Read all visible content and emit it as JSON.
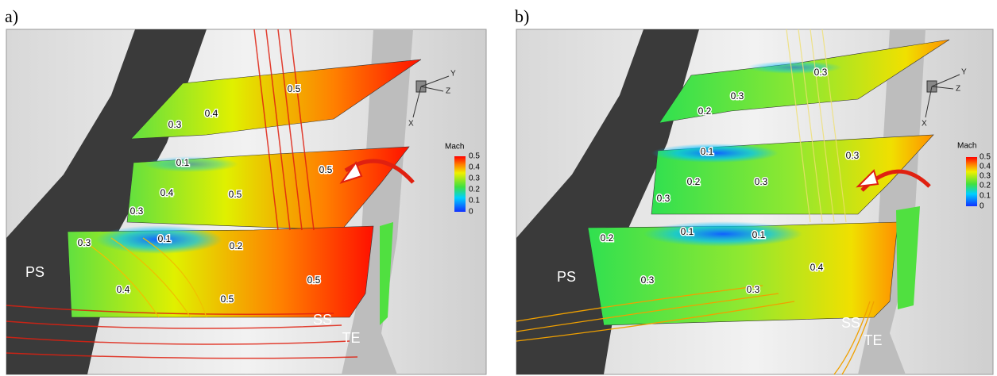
{
  "panels": [
    {
      "label": "a)",
      "contour_labels": [
        "0.5",
        "0.4",
        "0.3",
        "0.1",
        "0.5",
        "0.4",
        "0.5",
        "0.3",
        "0.3",
        "0.1",
        "0.2",
        "0.4",
        "0.5",
        "0.5"
      ],
      "regions": [
        "PS",
        "SS",
        "TE"
      ],
      "axes": [
        "Y",
        "Z",
        "X"
      ],
      "colorbar": {
        "title": "Mach",
        "ticks": [
          "0.5",
          "0.4",
          "0.3",
          "0.2",
          "0.1",
          "0"
        ]
      }
    },
    {
      "label": "b)",
      "contour_labels": [
        "0.3",
        "0.3",
        "0.2",
        "0.1",
        "0.3",
        "0.2",
        "0.3",
        "0.3",
        "0.2",
        "0.1",
        "0.1",
        "0.4",
        "0.3",
        "0.3"
      ],
      "regions": [
        "PS",
        "SS",
        "TE"
      ],
      "axes": [
        "Y",
        "Z",
        "X"
      ],
      "colorbar": {
        "title": "Mach",
        "ticks": [
          "0.5",
          "0.4",
          "0.3",
          "0.2",
          "0.1",
          "0"
        ]
      }
    }
  ]
}
